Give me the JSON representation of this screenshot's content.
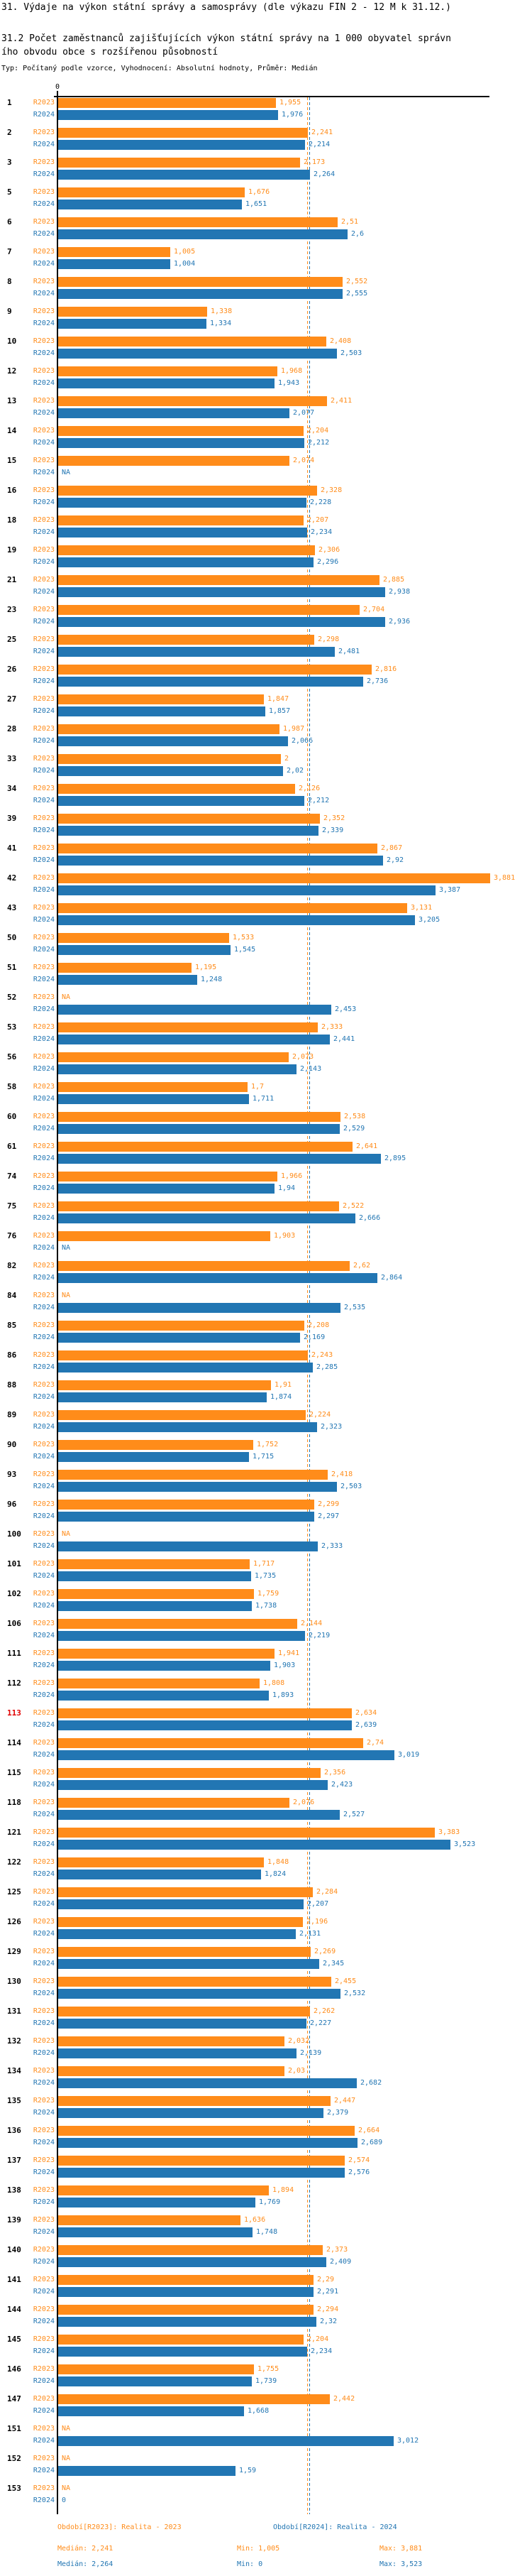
{
  "page": {
    "title": "31. Výdaje na výkon státní správy a samosprávy (dle výkazu FIN 2 - 12 M k 31.12.)",
    "subtitle_line1": "31.2 Počet zaměstnanců zajišťujících výkon státní správy na 1 000 obyvatel správn",
    "subtitle_line2": "ího obvodu obce s rozšířenou působností",
    "meta": "Typ: Počítaný podle vzorce, Vyhodnocení: Absolutní hodnoty, Průměr: Medián"
  },
  "colors": {
    "r2023": "#FF8C1A",
    "r2024": "#2276B3",
    "highlight": "#E00000",
    "axis": "#000000"
  },
  "axis": {
    "zero_label": "0"
  },
  "legend": {
    "r2023": "Období[R2023]: Realita - 2023",
    "r2024": "Období[R2024]: Realita - 2024"
  },
  "stats": {
    "r2023": {
      "median": 2.241,
      "median_label": "Medián: 2,241",
      "min_label": "Min: 1,005",
      "max_label": "Max: 3,881"
    },
    "r2024": {
      "median": 2.264,
      "median_label": "Medián: 2,264",
      "min_label": "Min: 0",
      "max_label": "Max: 3,523"
    }
  },
  "chart_data": {
    "type": "bar",
    "orientation": "horizontal",
    "series_names": [
      "R2023",
      "R2024"
    ],
    "x_axis": {
      "min": 0,
      "tick_labels": [
        "0"
      ],
      "max_value_shown": 3.881
    },
    "highlighted_row": "113",
    "rows": [
      {
        "id": "1",
        "r2023": "1,955",
        "r2024": "1,976"
      },
      {
        "id": "2",
        "r2023": "2,241",
        "r2024": "2,214"
      },
      {
        "id": "3",
        "r2023": "2,173",
        "r2024": "2,264"
      },
      {
        "id": "5",
        "r2023": "1,676",
        "r2024": "1,651"
      },
      {
        "id": "6",
        "r2023": "2,51",
        "r2024": "2,6"
      },
      {
        "id": "7",
        "r2023": "1,005",
        "r2024": "1,004"
      },
      {
        "id": "8",
        "r2023": "2,552",
        "r2024": "2,555"
      },
      {
        "id": "9",
        "r2023": "1,338",
        "r2024": "1,334"
      },
      {
        "id": "10",
        "r2023": "2,408",
        "r2024": "2,503"
      },
      {
        "id": "12",
        "r2023": "1,968",
        "r2024": "1,943"
      },
      {
        "id": "13",
        "r2023": "2,411",
        "r2024": "2,077"
      },
      {
        "id": "14",
        "r2023": "2,204",
        "r2024": "2,212"
      },
      {
        "id": "15",
        "r2023": "2,074",
        "r2024": "NA"
      },
      {
        "id": "16",
        "r2023": "2,328",
        "r2024": "2,228"
      },
      {
        "id": "18",
        "r2023": "2,207",
        "r2024": "2,234"
      },
      {
        "id": "19",
        "r2023": "2,306",
        "r2024": "2,296"
      },
      {
        "id": "21",
        "r2023": "2,885",
        "r2024": "2,938"
      },
      {
        "id": "23",
        "r2023": "2,704",
        "r2024": "2,936"
      },
      {
        "id": "25",
        "r2023": "2,298",
        "r2024": "2,481"
      },
      {
        "id": "26",
        "r2023": "2,816",
        "r2024": "2,736"
      },
      {
        "id": "27",
        "r2023": "1,847",
        "r2024": "1,857"
      },
      {
        "id": "28",
        "r2023": "1,987",
        "r2024": "2,066"
      },
      {
        "id": "33",
        "r2023": "2",
        "r2024": "2,02"
      },
      {
        "id": "34",
        "r2023": "2,126",
        "r2024": "2,212"
      },
      {
        "id": "39",
        "r2023": "2,352",
        "r2024": "2,339"
      },
      {
        "id": "41",
        "r2023": "2,867",
        "r2024": "2,92"
      },
      {
        "id": "42",
        "r2023": "3,881",
        "r2024": "3,387"
      },
      {
        "id": "43",
        "r2023": "3,131",
        "r2024": "3,205"
      },
      {
        "id": "50",
        "r2023": "1,533",
        "r2024": "1,545"
      },
      {
        "id": "51",
        "r2023": "1,195",
        "r2024": "1,248"
      },
      {
        "id": "52",
        "r2023": "NA",
        "r2024": "2,453"
      },
      {
        "id": "53",
        "r2023": "2,333",
        "r2024": "2,441"
      },
      {
        "id": "56",
        "r2023": "2,073",
        "r2024": "2,143"
      },
      {
        "id": "58",
        "r2023": "1,7",
        "r2024": "1,711"
      },
      {
        "id": "60",
        "r2023": "2,538",
        "r2024": "2,529"
      },
      {
        "id": "61",
        "r2023": "2,641",
        "r2024": "2,895"
      },
      {
        "id": "74",
        "r2023": "1,966",
        "r2024": "1,94"
      },
      {
        "id": "75",
        "r2023": "2,522",
        "r2024": "2,666"
      },
      {
        "id": "76",
        "r2023": "1,903",
        "r2024": "NA"
      },
      {
        "id": "82",
        "r2023": "2,62",
        "r2024": "2,864"
      },
      {
        "id": "84",
        "r2023": "NA",
        "r2024": "2,535"
      },
      {
        "id": "85",
        "r2023": "2,208",
        "r2024": "2,169"
      },
      {
        "id": "86",
        "r2023": "2,243",
        "r2024": "2,285"
      },
      {
        "id": "88",
        "r2023": "1,91",
        "r2024": "1,874"
      },
      {
        "id": "89",
        "r2023": "2,224",
        "r2024": "2,323"
      },
      {
        "id": "90",
        "r2023": "1,752",
        "r2024": "1,715"
      },
      {
        "id": "93",
        "r2023": "2,418",
        "r2024": "2,503"
      },
      {
        "id": "96",
        "r2023": "2,299",
        "r2024": "2,297"
      },
      {
        "id": "100",
        "r2023": "NA",
        "r2024": "2,333"
      },
      {
        "id": "101",
        "r2023": "1,717",
        "r2024": "1,735"
      },
      {
        "id": "102",
        "r2023": "1,759",
        "r2024": "1,738"
      },
      {
        "id": "106",
        "r2023": "2,144",
        "r2024": "2,219"
      },
      {
        "id": "111",
        "r2023": "1,941",
        "r2024": "1,903"
      },
      {
        "id": "112",
        "r2023": "1,808",
        "r2024": "1,893"
      },
      {
        "id": "113",
        "r2023": "2,634",
        "r2024": "2,639"
      },
      {
        "id": "114",
        "r2023": "2,74",
        "r2024": "3,019"
      },
      {
        "id": "115",
        "r2023": "2,356",
        "r2024": "2,423"
      },
      {
        "id": "118",
        "r2023": "2,076",
        "r2024": "2,527"
      },
      {
        "id": "121",
        "r2023": "3,383",
        "r2024": "3,523"
      },
      {
        "id": "122",
        "r2023": "1,848",
        "r2024": "1,824"
      },
      {
        "id": "125",
        "r2023": "2,284",
        "r2024": "2,207"
      },
      {
        "id": "126",
        "r2023": "2,196",
        "r2024": "2,131"
      },
      {
        "id": "129",
        "r2023": "2,269",
        "r2024": "2,345"
      },
      {
        "id": "130",
        "r2023": "2,455",
        "r2024": "2,532"
      },
      {
        "id": "131",
        "r2023": "2,262",
        "r2024": "2,227"
      },
      {
        "id": "132",
        "r2023": "2,032",
        "r2024": "2,139"
      },
      {
        "id": "134",
        "r2023": "2,03",
        "r2024": "2,682"
      },
      {
        "id": "135",
        "r2023": "2,447",
        "r2024": "2,379"
      },
      {
        "id": "136",
        "r2023": "2,664",
        "r2024": "2,689"
      },
      {
        "id": "137",
        "r2023": "2,574",
        "r2024": "2,576"
      },
      {
        "id": "138",
        "r2023": "1,894",
        "r2024": "1,769"
      },
      {
        "id": "139",
        "r2023": "1,636",
        "r2024": "1,748"
      },
      {
        "id": "140",
        "r2023": "2,373",
        "r2024": "2,409"
      },
      {
        "id": "141",
        "r2023": "2,29",
        "r2024": "2,291"
      },
      {
        "id": "144",
        "r2023": "2,294",
        "r2024": "2,32"
      },
      {
        "id": "145",
        "r2023": "2,204",
        "r2024": "2,234"
      },
      {
        "id": "146",
        "r2023": "1,755",
        "r2024": "1,739"
      },
      {
        "id": "147",
        "r2023": "2,442",
        "r2024": "1,668"
      },
      {
        "id": "151",
        "r2023": "NA",
        "r2024": "3,012"
      },
      {
        "id": "152",
        "r2023": "NA",
        "r2024": "1,59"
      },
      {
        "id": "153",
        "r2023": "NA",
        "r2024": "0"
      }
    ]
  }
}
